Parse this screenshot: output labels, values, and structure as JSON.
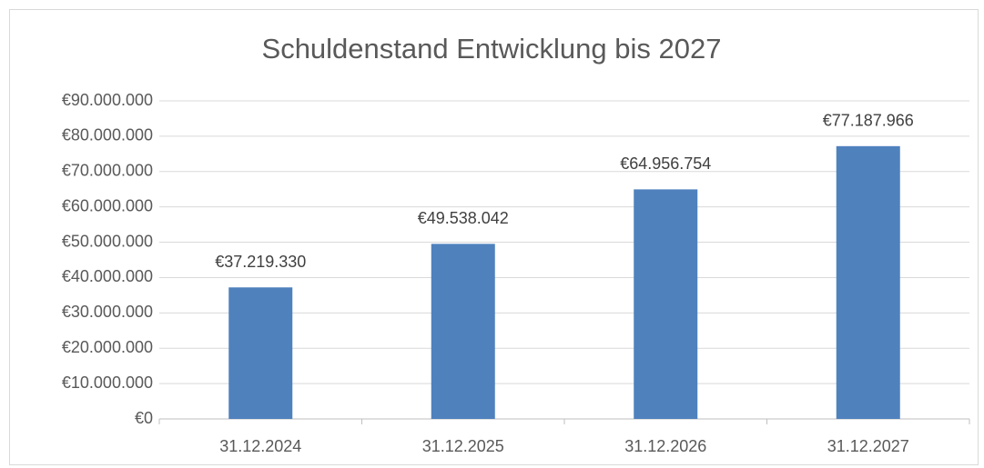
{
  "chart_data": {
    "type": "bar",
    "title": "Schuldenstand Entwicklung bis 2027",
    "categories": [
      "31.12.2024",
      "31.12.2025",
      "31.12.2026",
      "31.12.2027"
    ],
    "values": [
      37219330,
      49538042,
      64956754,
      77187966
    ],
    "value_labels": [
      "€37.219.330",
      "€49.538.042",
      "€64.956.754",
      "€77.187.966"
    ],
    "color": "#4f81bd",
    "ylim": [
      0,
      90000000
    ],
    "yticks": [
      {
        "value": 0,
        "label": "€0"
      },
      {
        "value": 10000000,
        "label": "€10.000.000"
      },
      {
        "value": 20000000,
        "label": "€20.000.000"
      },
      {
        "value": 30000000,
        "label": "€30.000.000"
      },
      {
        "value": 40000000,
        "label": "€40.000.000"
      },
      {
        "value": 50000000,
        "label": "€50.000.000"
      },
      {
        "value": 60000000,
        "label": "€60.000.000"
      },
      {
        "value": 70000000,
        "label": "€70.000.000"
      },
      {
        "value": 80000000,
        "label": "€80.000.000"
      },
      {
        "value": 90000000,
        "label": "€90.000.000"
      }
    ],
    "grid": true
  }
}
